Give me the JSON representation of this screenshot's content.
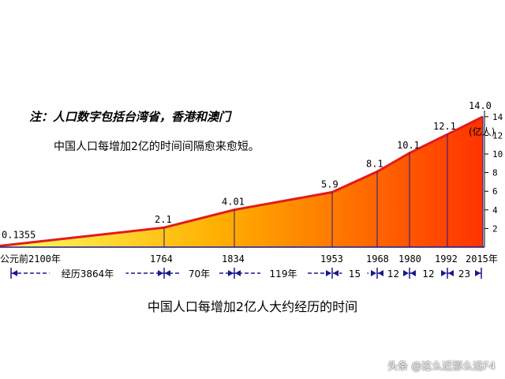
{
  "note": "注：人口数字包括台湾省，香港和澳门",
  "subtitle": "中国人口每增加2亿的时间间隔愈来愈短。",
  "caption": "中国人口每增加2亿人大约经历的时间",
  "watermark": "头条 @这么近那么远F4",
  "chart_data": {
    "type": "area",
    "x_labels": [
      "公元前2100年",
      "1764",
      "1834",
      "1953",
      "1968",
      "1980",
      "1992",
      "2015年"
    ],
    "values": [
      0.1355,
      2.1,
      4.01,
      5.9,
      8.1,
      10.1,
      12.1,
      14.0
    ],
    "value_labels": [
      "0.1355",
      "2.1",
      "4.01",
      "5.9",
      "8.1",
      "10.1",
      "12.1",
      "14.0"
    ],
    "ylabel": "(亿人)",
    "yticks": [
      2,
      4,
      6,
      8,
      10,
      12,
      14
    ],
    "ylim": [
      0,
      14
    ],
    "intervals": [
      "经历3864年",
      "70年",
      "119年",
      "15",
      "12",
      "12",
      "23"
    ],
    "colors": {
      "fill_left": "#ffff66",
      "fill_mid": "#ffb000",
      "fill_right": "#ff3300",
      "line": "#e21b1b",
      "interval": "#1a1a8a"
    }
  }
}
